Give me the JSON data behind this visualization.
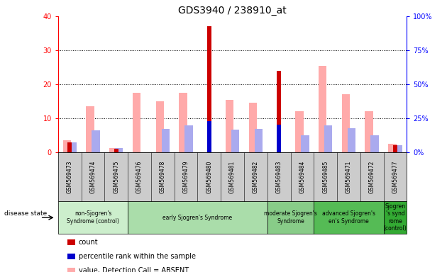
{
  "title": "GDS3940 / 238910_at",
  "samples": [
    "GSM569473",
    "GSM569474",
    "GSM569475",
    "GSM569476",
    "GSM569478",
    "GSM569479",
    "GSM569480",
    "GSM569481",
    "GSM569482",
    "GSM569483",
    "GSM569484",
    "GSM569485",
    "GSM569471",
    "GSM569472",
    "GSM569477"
  ],
  "count_values": [
    3,
    0,
    1,
    0,
    0,
    0,
    37,
    0,
    0,
    24,
    0,
    0,
    0,
    0,
    2
  ],
  "percentile_values": [
    null,
    null,
    null,
    null,
    null,
    null,
    23,
    null,
    null,
    20.5,
    null,
    null,
    null,
    null,
    null
  ],
  "value_absent": [
    3.5,
    13.5,
    1.2,
    17.5,
    15,
    17.5,
    null,
    15.5,
    14.5,
    null,
    12,
    25.5,
    17,
    12,
    2.5
  ],
  "rank_absent": [
    7.5,
    16,
    3,
    null,
    17,
    20,
    null,
    16.5,
    17,
    null,
    12.5,
    20,
    17.5,
    12.5,
    5
  ],
  "groups": [
    {
      "label": "non-Sjogren's\nSyndrome (control)",
      "start": 0,
      "end": 3,
      "color": "#c8f0c8"
    },
    {
      "label": "early Sjogren's Syndrome",
      "start": 3,
      "end": 9,
      "color": "#90e890"
    },
    {
      "label": "moderate Sjogren's\nSyndrome",
      "start": 9,
      "end": 11,
      "color": "#70d870"
    },
    {
      "label": "advanced Sjogren's\nen's Syndrome",
      "start": 11,
      "end": 14,
      "color": "#50c850"
    },
    {
      "label": "Sjogren\n's synd\nrome\n(control)",
      "start": 14,
      "end": 15,
      "color": "#30b830"
    }
  ],
  "ylim_left": [
    0,
    40
  ],
  "ylim_right": [
    0,
    100
  ],
  "yticks_left": [
    0,
    10,
    20,
    30,
    40
  ],
  "yticks_right": [
    0,
    25,
    50,
    75,
    100
  ],
  "count_color": "#cc0000",
  "percentile_color": "#0000cc",
  "value_absent_color": "#ffaaaa",
  "rank_absent_color": "#aaaaee",
  "bg_color": "#cccccc",
  "sample_row_color": "#cccccc"
}
